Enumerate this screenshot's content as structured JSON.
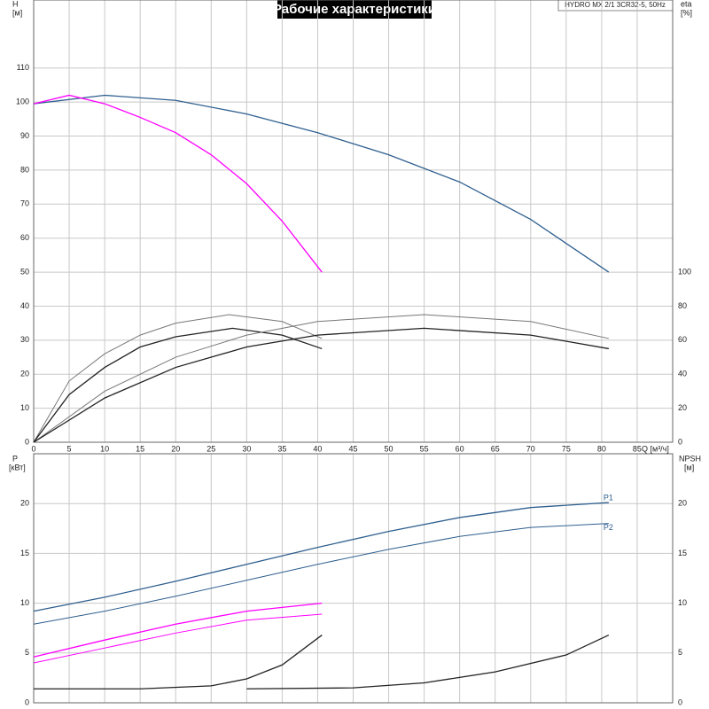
{
  "chart_data": [
    {
      "type": "line",
      "title": "Рабочие характеристики",
      "annotation": "HYDRO MX 2/1 3CR32-5, 50Hz",
      "ylabel": "H",
      "yunit": "[м]",
      "y2label": "eta",
      "y2unit": "[%]",
      "xlabel": "Q [м³/ч]",
      "xlim": [
        0,
        90
      ],
      "xticks": [
        0,
        5,
        10,
        15,
        20,
        25,
        30,
        35,
        40,
        45,
        50,
        55,
        60,
        65,
        70,
        75,
        80,
        85
      ],
      "ylim": [
        0,
        130
      ],
      "yticks": [
        0,
        10,
        20,
        30,
        40,
        50,
        60,
        70,
        80,
        90,
        100,
        110
      ],
      "y2lim": [
        0,
        260
      ],
      "y2ticks": [
        0,
        20,
        40,
        60,
        80,
        100
      ],
      "grid": true,
      "series": [
        {
          "color": "#2f5f8f",
          "line_width": 1.3,
          "x": [
            0,
            10,
            20,
            30,
            40,
            50,
            60,
            70,
            81
          ],
          "values": [
            99.5,
            102,
            100.5,
            96.5,
            91,
            84.5,
            76.5,
            65.5,
            50
          ]
        },
        {
          "color": "#ff00ff",
          "line_width": 1.3,
          "x": [
            0,
            5,
            10,
            15,
            20,
            25,
            30,
            35,
            40.6
          ],
          "values": [
            99.5,
            102,
            99.5,
            95.5,
            91,
            84.5,
            76,
            65,
            50
          ]
        },
        {
          "color": "#777777",
          "line_width": 1,
          "axis": "y2",
          "x": [
            0,
            5,
            10,
            15,
            20,
            27.5,
            35,
            40.6
          ],
          "values": [
            0,
            36,
            52,
            63,
            70,
            75,
            71,
            61
          ]
        },
        {
          "color": "#222222",
          "line_width": 1.3,
          "axis": "y2",
          "x": [
            0,
            5,
            10,
            15,
            20,
            28,
            35,
            40.6
          ],
          "values": [
            0,
            28,
            44,
            56,
            62,
            67,
            63,
            55
          ]
        },
        {
          "color": "#777777",
          "line_width": 1,
          "axis": "y2",
          "x": [
            0,
            10,
            20,
            30,
            40,
            55,
            70,
            81
          ],
          "values": [
            0,
            30,
            50,
            63,
            71,
            75,
            71,
            61
          ]
        },
        {
          "color": "#222222",
          "line_width": 1.3,
          "axis": "y2",
          "x": [
            0,
            10,
            20,
            30,
            40,
            55,
            70,
            81
          ],
          "values": [
            0,
            26,
            44,
            56,
            63,
            67,
            63,
            55
          ]
        }
      ]
    },
    {
      "type": "line",
      "ylabel": "P",
      "yunit": "[кВт]",
      "y2label": "NPSH",
      "y2unit": "[м]",
      "xlim": [
        0,
        90
      ],
      "ylim": [
        0,
        25
      ],
      "yticks": [
        0,
        5,
        10,
        15,
        20
      ],
      "y2lim": [
        0,
        25
      ],
      "y2ticks": [
        0,
        5,
        10,
        15,
        20
      ],
      "grid": true,
      "series": [
        {
          "name": "P1",
          "color": "#2f5f8f",
          "line_width": 1.3,
          "x": [
            0,
            10,
            20,
            30,
            40,
            50,
            60,
            70,
            81
          ],
          "values": [
            9.2,
            10.6,
            12.2,
            13.9,
            15.6,
            17.2,
            18.6,
            19.6,
            20.1
          ]
        },
        {
          "name": "P2",
          "color": "#2f5f8f",
          "line_width": 1,
          "x": [
            0,
            10,
            20,
            30,
            40,
            50,
            60,
            70,
            81
          ],
          "values": [
            7.9,
            9.2,
            10.7,
            12.3,
            13.9,
            15.4,
            16.7,
            17.6,
            18
          ]
        },
        {
          "color": "#ff00ff",
          "line_width": 1.3,
          "x": [
            0,
            10,
            20,
            30,
            40.6
          ],
          "values": [
            4.6,
            6.3,
            7.9,
            9.2,
            10
          ]
        },
        {
          "color": "#ff00ff",
          "line_width": 1,
          "x": [
            0,
            10,
            20,
            30,
            40.6
          ],
          "values": [
            4,
            5.5,
            7,
            8.3,
            8.9
          ]
        },
        {
          "color": "#222222",
          "line_width": 1.3,
          "axis": "y2",
          "x": [
            0,
            15,
            25,
            30,
            35,
            40.6
          ],
          "values": [
            1.4,
            1.4,
            1.7,
            2.4,
            3.8,
            6.8
          ]
        },
        {
          "color": "#222222",
          "line_width": 1.3,
          "axis": "y2",
          "x": [
            30,
            45,
            55,
            65,
            75,
            81
          ],
          "values": [
            1.4,
            1.5,
            2,
            3.1,
            4.8,
            6.8
          ]
        }
      ]
    }
  ]
}
